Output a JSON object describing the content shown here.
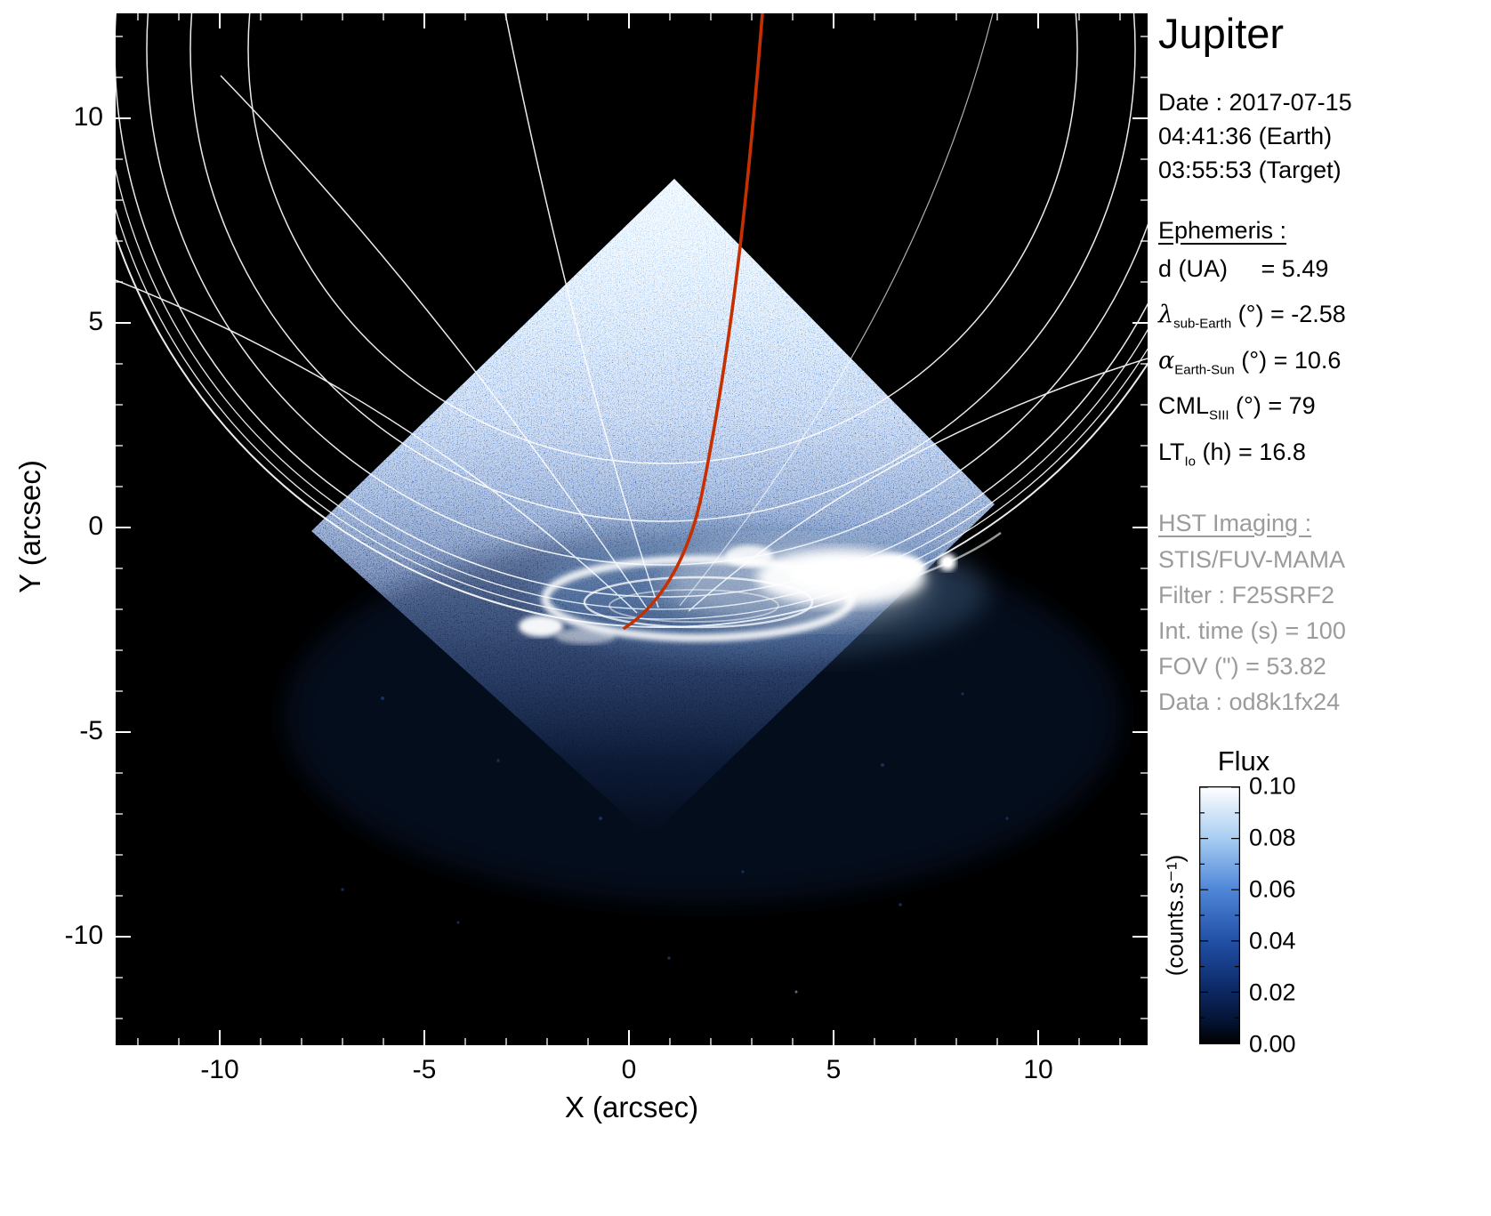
{
  "chart_data": {
    "type": "heatmap",
    "title": "Jupiter",
    "xlabel": "X (arcsec)",
    "ylabel": "Y (arcsec)",
    "xlim": [
      -12.5,
      12.7
    ],
    "ylim": [
      -12.7,
      12.6
    ],
    "x_ticks": [
      -10,
      -5,
      0,
      5,
      10
    ],
    "y_ticks": [
      -10,
      -5,
      0,
      5,
      10
    ],
    "grid": false,
    "background": "black",
    "colorbar": {
      "title": "Flux",
      "unit": "(counts.s⁻¹)",
      "range": [
        0.0,
        0.1
      ],
      "ticks": [
        0.0,
        0.02,
        0.04,
        0.06,
        0.08,
        0.1
      ],
      "colormap": "black→blue→white"
    },
    "content": {
      "description": "Far-UV HST/STIS image of Jupiter's northern aurora. The square FUV-MAMA detector field of view appears as a diamond (square rotated ~45°) of blue photon-noise speckle, brightest near its top corner. The auroral main oval is the saturated white emission near the bottom of the diamond. A white planetary latitude/longitude graticule and a red magnetic footprint track are overplotted.",
      "fov_corners_arcsec": [
        [
          1.1,
          8.5
        ],
        [
          8.9,
          0.6
        ],
        [
          0.5,
          -7.6
        ],
        [
          -7.8,
          -0.1
        ]
      ],
      "aurora_oval_center_arcsec": [
        1.7,
        -1.8
      ],
      "aurora_bright_patch_arcsec": [
        5.2,
        -1.2
      ],
      "isolated_bright_spot_arcsec": [
        7.8,
        -0.85
      ],
      "red_track_top_arcsec": [
        3.3,
        12.6
      ],
      "red_track_bottom_arcsec": [
        -0.1,
        -2.5
      ]
    }
  },
  "panel": {
    "title": "Jupiter",
    "date_lines": [
      "Date : 2017-07-15",
      "04:41:36 (Earth)",
      "03:55:53 (Target)"
    ],
    "ephemeris": {
      "heading": "Ephemeris :",
      "rows": [
        {
          "symbol": "d",
          "sub": "",
          "rest": " (UA)     = 5.49"
        },
        {
          "symbol": "λ",
          "sub": "sub-Earth",
          "rest": " (°) = -2.58"
        },
        {
          "symbol": "α",
          "sub": "Earth-Sun",
          "rest": " (°) = 10.6"
        },
        {
          "symbol": "CML",
          "sub": "SIII",
          "rest": " (°) = 79"
        },
        {
          "symbol": "LT",
          "sub": "Io",
          "rest": " (h) = 16.8"
        }
      ]
    },
    "hst": {
      "heading": "HST Imaging :",
      "lines": [
        "STIS/FUV-MAMA",
        "Filter : F25SRF2",
        "Int. time (s) = 100",
        "FOV (\") = 53.82",
        "Data : od8k1fx24"
      ]
    }
  },
  "axes": {
    "x": {
      "label": "X (arcsec)",
      "ticks": [
        "-10",
        "-5",
        "0",
        "5",
        "10"
      ]
    },
    "y": {
      "label": "Y (arcsec)",
      "ticks": [
        "10",
        "5",
        "0",
        "-5",
        "-10"
      ]
    }
  },
  "colorbar": {
    "title": "Flux",
    "unit": "(counts.s⁻¹)",
    "tick_labels": [
      "0.10",
      "0.08",
      "0.06",
      "0.04",
      "0.02",
      "0.00"
    ]
  },
  "colors": {
    "page_bg": "#ffffff",
    "plot_bg": "#000000",
    "graticule": "#ffffff",
    "footprint_track": "#c63000",
    "muted_text": "#9b9b9b",
    "text": "#000000"
  }
}
